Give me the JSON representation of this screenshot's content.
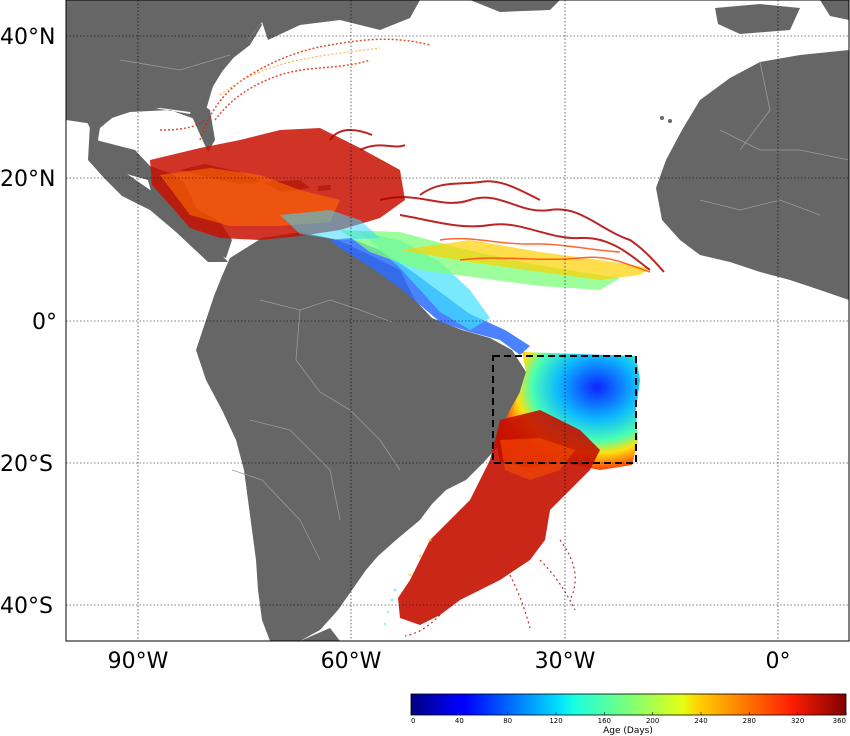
{
  "map": {
    "lat_labels": [
      "40°N",
      "20°N",
      "0°",
      "20°S",
      "40°S"
    ],
    "lon_labels": [
      "90°W",
      "60°W",
      "30°W",
      "0°"
    ],
    "extent": {
      "lon_min": -100,
      "lon_max": 10,
      "lat_min": -45,
      "lat_max": 45
    },
    "gridlines": true,
    "region_box": {
      "lon_min": -40,
      "lon_max": -20,
      "lat_min": -20,
      "lat_max": -5
    },
    "colors": {
      "ocean": "#ffffff",
      "land": "#666666",
      "border": "#9a9a9a",
      "grid": "#000000"
    }
  },
  "colorbar": {
    "label": "Age (Days)",
    "ticks": [
      "0",
      "40",
      "80",
      "120",
      "160",
      "200",
      "240",
      "280",
      "320",
      "360"
    ],
    "range": [
      0,
      360
    ],
    "colormap": "jet"
  }
}
